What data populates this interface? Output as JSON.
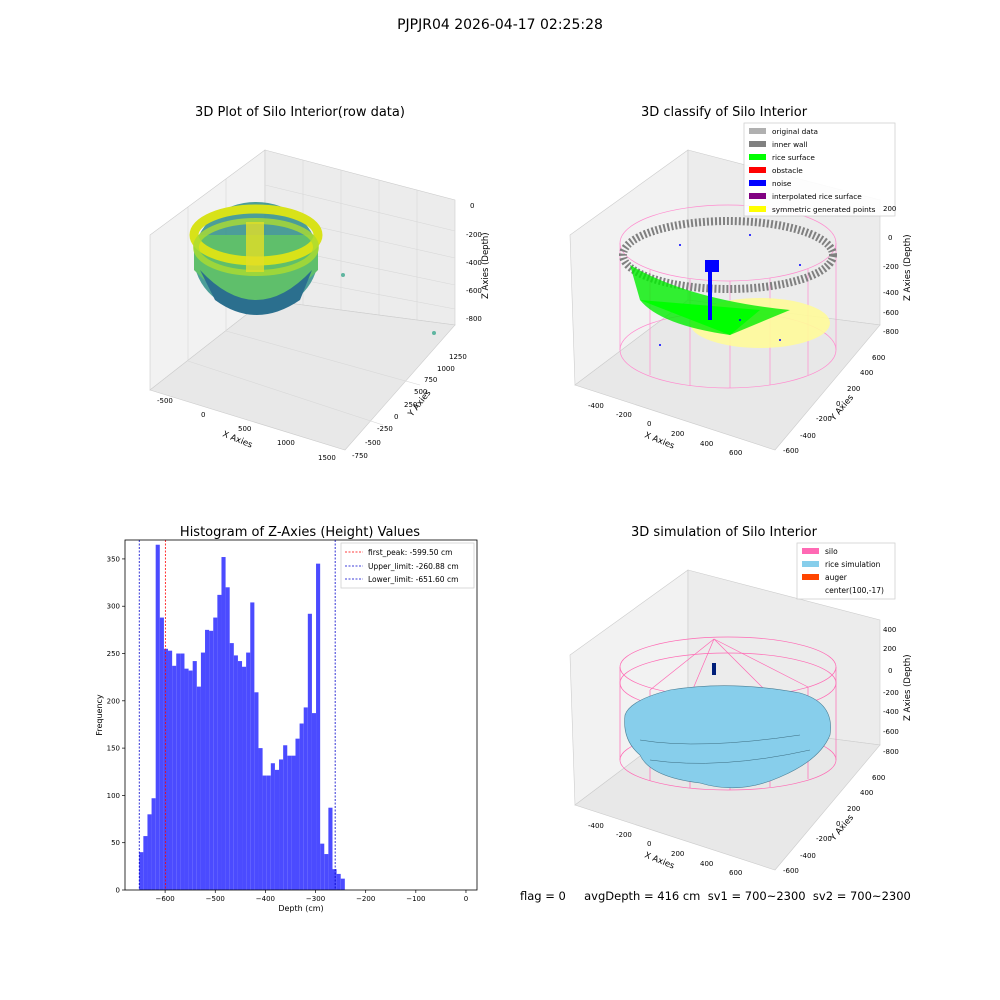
{
  "figure": {
    "suptitle": "PJPJR04 2026-04-17 02:25:28",
    "footer": "flag = 0     avgDepth = 416 cm  sv1 = 700~2300  sv2 = 700~2300"
  },
  "colors": {
    "histogram_bar": "#4b4bff",
    "first_peak_line": "#ff0000",
    "limit_line": "#0000cc",
    "grid": "#d9d9d9",
    "pane": "#f2f2f2",
    "silo": "#ff69b4",
    "rice_simulation": "#87ceeb",
    "auger": "#ff4500",
    "original_data": "#b0b0b0",
    "inner_wall": "#808080",
    "rice_surface": "#00ff00",
    "obstacle": "#ff0000",
    "noise": "#0000ff",
    "interpolated_rice_surface": "#800080",
    "symmetric_generated_points": "#ffff00"
  },
  "panels": {
    "raw": {
      "title": "3D Plot of Silo Interior(row data)",
      "xlabel": "X Axies",
      "ylabel": "Y Axies",
      "zlabel": "Z Axies (Depth)",
      "xticks": [
        "-500",
        "0",
        "500",
        "1000",
        "1500"
      ],
      "yticks": [
        "-750",
        "-500",
        "-250",
        "0",
        "250",
        "500",
        "750",
        "1000",
        "1250"
      ],
      "zticks": [
        "0",
        "-200",
        "-400",
        "-600",
        "-800"
      ]
    },
    "classify": {
      "title": "3D classify of Silo Interior",
      "xlabel": "X Axies",
      "ylabel": "Y Axies",
      "zlabel": "Z Axies (Depth)",
      "xticks": [
        "-400",
        "-200",
        "0",
        "200",
        "400",
        "600"
      ],
      "yticks": [
        "-600",
        "-400",
        "-200",
        "0",
        "200",
        "400",
        "600"
      ],
      "zticks": [
        "200",
        "0",
        "-200",
        "-400",
        "-600",
        "-800"
      ],
      "legend": [
        {
          "label": "original data",
          "color_key": "original_data"
        },
        {
          "label": "inner wall",
          "color_key": "inner_wall"
        },
        {
          "label": "rice surface",
          "color_key": "rice_surface"
        },
        {
          "label": "obstacle",
          "color_key": "obstacle"
        },
        {
          "label": "noise",
          "color_key": "noise"
        },
        {
          "label": "interpolated rice surface",
          "color_key": "interpolated_rice_surface"
        },
        {
          "label": "symmetric generated points",
          "color_key": "symmetric_generated_points"
        }
      ]
    },
    "simulation": {
      "title": "3D simulation of Silo Interior",
      "xlabel": "X Axies",
      "ylabel": "Y Axies",
      "zlabel": "Z Axies (Depth)",
      "xticks": [
        "-400",
        "-200",
        "0",
        "200",
        "400",
        "600"
      ],
      "yticks": [
        "-600",
        "-400",
        "-200",
        "0",
        "200",
        "400",
        "600"
      ],
      "zticks": [
        "400",
        "200",
        "0",
        "-200",
        "-400",
        "-600",
        "-800"
      ],
      "legend": [
        {
          "label": "silo",
          "color_key": "silo"
        },
        {
          "label": "rice simulation",
          "color_key": "rice_simulation"
        },
        {
          "label": "auger",
          "color_key": "auger"
        },
        {
          "label": "center(100,-17)",
          "color_key": null
        }
      ]
    }
  },
  "chart_data": [
    {
      "type": "histogram",
      "title": "Histogram of Z-Axies (Height) Values",
      "xlabel": "Depth (cm)",
      "ylabel": "Frequency",
      "xlim": [
        -680,
        22
      ],
      "ylim": [
        0,
        370
      ],
      "xticks": [
        -600,
        -500,
        -400,
        -300,
        -200,
        -100,
        0
      ],
      "yticks": [
        0,
        50,
        100,
        150,
        200,
        250,
        300,
        350
      ],
      "bin_start": -651.6,
      "bin_width": 8.2,
      "values": [
        40,
        57,
        80,
        97,
        365,
        288,
        255,
        253,
        237,
        250,
        250,
        234,
        232,
        242,
        215,
        251,
        275,
        274,
        288,
        312,
        352,
        320,
        261,
        248,
        242,
        236,
        251,
        304,
        209,
        150,
        121,
        121,
        134,
        127,
        138,
        153,
        142,
        142,
        160,
        176,
        193,
        292,
        187,
        345,
        49,
        38,
        87,
        22,
        17,
        12
      ],
      "vlines": [
        {
          "label": "first_peak: -599.50 cm",
          "x": -599.5,
          "color_key": "first_peak_line"
        },
        {
          "label": "Upper_limit: -260.88 cm",
          "x": -260.88,
          "color_key": "limit_line"
        },
        {
          "label": "Lower_limit: -651.60 cm",
          "x": -651.6,
          "color_key": "limit_line"
        }
      ],
      "legend_position": "top-right",
      "grid": false
    }
  ]
}
